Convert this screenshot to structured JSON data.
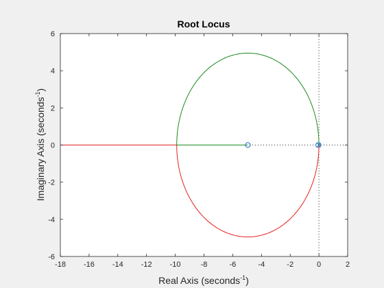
{
  "figure": {
    "background": "#f0f0f0",
    "plot_background": "#ffffff"
  },
  "chart_data": {
    "type": "line",
    "title": "Root Locus",
    "xlabel": {
      "text": "Real Axis (seconds",
      "sup": "-1",
      "close": ")"
    },
    "ylabel": {
      "text": "Imaginary Axis (seconds",
      "sup": "-1",
      "close": ")"
    },
    "xlim": [
      -18,
      2
    ],
    "ylim": [
      -6,
      6
    ],
    "xticks": [
      -18,
      -16,
      -14,
      -12,
      -10,
      -8,
      -6,
      -4,
      -2,
      0,
      2
    ],
    "xtick_labels": [
      "-18",
      "-16",
      "-14",
      "-12",
      "-10",
      "-8",
      "-6",
      "-4",
      "-2",
      "0",
      "2"
    ],
    "yticks": [
      -6,
      -4,
      -2,
      0,
      2,
      4,
      6
    ],
    "ytick_labels": [
      "-6",
      "-4",
      "-2",
      "0",
      "2",
      "4",
      "6"
    ],
    "grid": false,
    "legend": "none",
    "colors": {
      "green": "#1b8a1b",
      "red": "#e0201b",
      "zero_marker": "#1f6fbf",
      "axis": "#262626"
    },
    "series": [
      {
        "color": "#e0201b",
        "segments": [
          {
            "x": [
              -18,
              -9.9
            ],
            "y": [
              0,
              0
            ]
          },
          {
            "circle": {
              "center": [
                -4.95,
                0
              ],
              "radius": 4.95
            },
            "angles": [
              180,
              360
            ],
            "side": "lower"
          }
        ]
      },
      {
        "color": "#1b8a1b",
        "segments": [
          {
            "x": [
              -9.9,
              -4.95
            ],
            "y": [
              0,
              0
            ]
          },
          {
            "circle": {
              "center": [
                -4.95,
                0
              ],
              "radius": 4.95
            },
            "angles": [
              0,
              180
            ],
            "side": "upper"
          }
        ]
      }
    ],
    "zeros": [
      {
        "x": -4.95,
        "y": 0
      },
      {
        "x": -0.05,
        "y": 0
      }
    ],
    "poles": [
      {
        "x": 0,
        "y": 0
      }
    ],
    "reference_lines": [
      {
        "orientation": "vertical",
        "value": 0,
        "style": "dotted"
      },
      {
        "orientation": "horizontal",
        "value": 0,
        "style": "dotted"
      }
    ]
  }
}
